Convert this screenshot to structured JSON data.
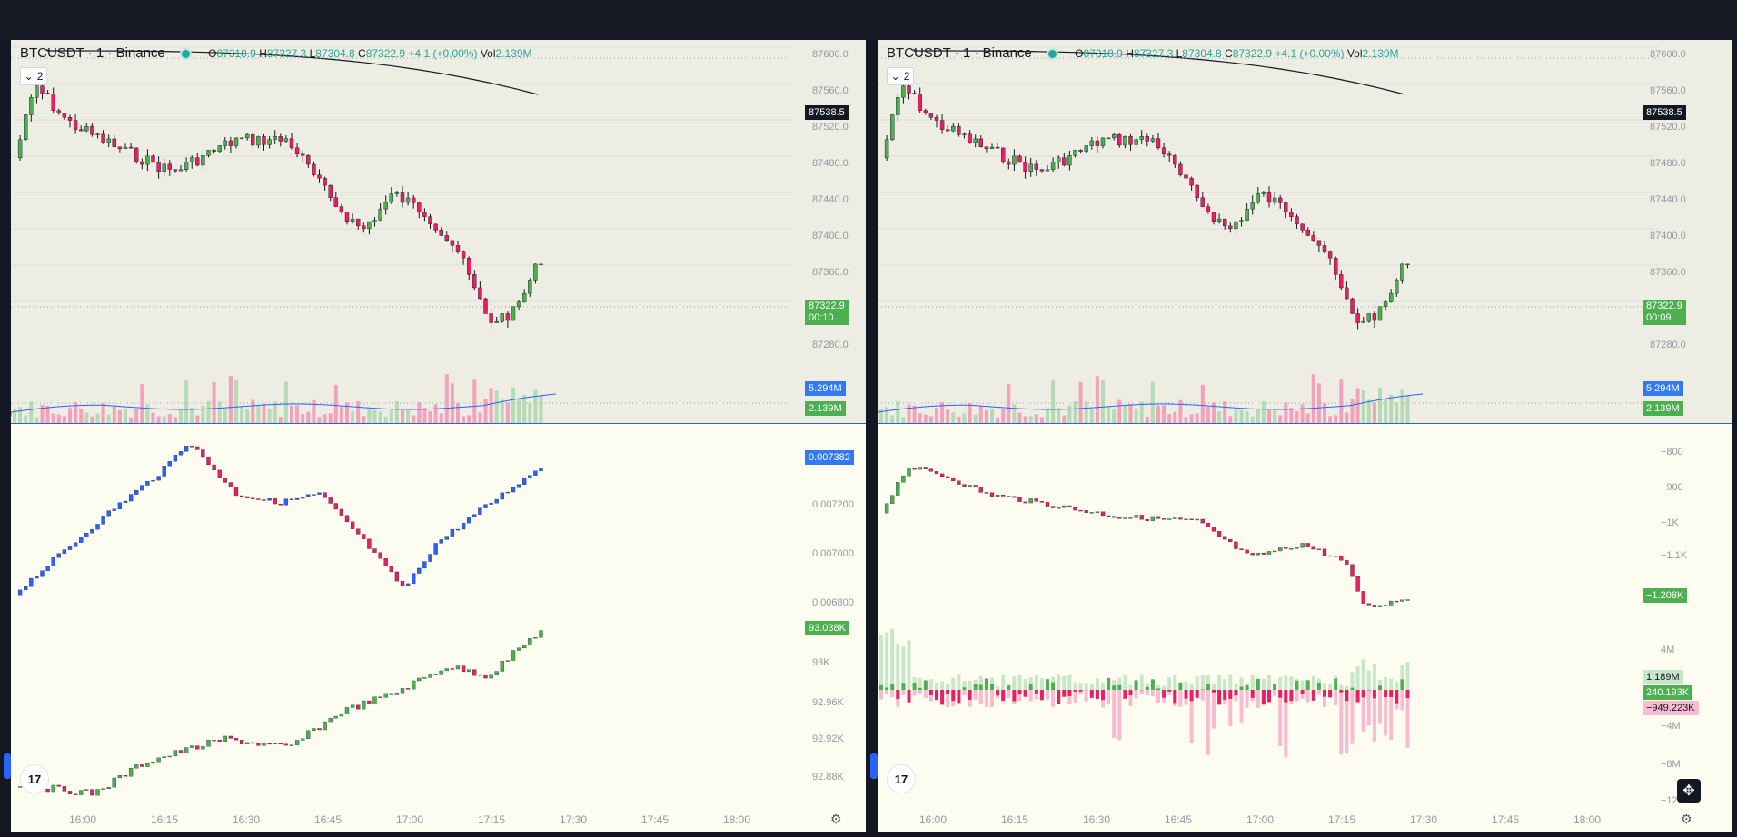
{
  "left_chart": {
    "symbol_title": "BTCUSDT · 1 · Binance",
    "ohlc": {
      "o_label": "O",
      "o": "87318.9",
      "h_label": "H",
      "h": "87327.3",
      "l_label": "L",
      "l": "87304.8",
      "c_label": "C",
      "c": "87322.9",
      "change": "+4.1 (+0.00%)",
      "vol_label": "Vol",
      "vol": "2.139M"
    },
    "collapse_count": "2",
    "price_axis": [
      "87600.0",
      "87560.0",
      "87520.0",
      "87480.0",
      "87440.0",
      "87400.0",
      "87360.0",
      "87280.0"
    ],
    "price_tag": "87538.5",
    "last_price": "87322.9",
    "countdown": "00:10",
    "vol_tags": [
      "5.294M",
      "2.139M"
    ],
    "pane2_axis": [
      "0.007200",
      "0.007000",
      "0.006800"
    ],
    "pane2_tag": "0.007382",
    "pane3_axis": [
      "93K",
      "92.96K",
      "92.92K",
      "92.88K"
    ],
    "pane3_tag": "93.038K",
    "time_axis": [
      "16:00",
      "16:15",
      "16:30",
      "16:45",
      "17:00",
      "17:15",
      "17:30",
      "17:45",
      "18:00"
    ]
  },
  "right_chart": {
    "symbol_title": "BTCUSDT · 1 · Binance",
    "ohlc": {
      "o_label": "O",
      "o": "87318.9",
      "h_label": "H",
      "h": "87327.3",
      "l_label": "L",
      "l": "87304.8",
      "c_label": "C",
      "c": "87322.9",
      "change": "+4.1 (+0.00%)",
      "vol_label": "Vol",
      "vol": "2.139M"
    },
    "collapse_count": "2",
    "price_axis": [
      "87600.0",
      "87560.0",
      "87520.0",
      "87480.0",
      "87440.0",
      "87400.0",
      "87360.0",
      "87280.0"
    ],
    "price_tag": "87538.5",
    "last_price": "87322.9",
    "countdown": "00:09",
    "vol_tags": [
      "5.294M",
      "2.139M"
    ],
    "pane2_axis": [
      "−800",
      "−900",
      "−1K",
      "−1.1K"
    ],
    "pane2_tag": "−1.208K",
    "pane3_axis": [
      "4M",
      "−4M",
      "−8M",
      "−12M"
    ],
    "pane3_tags": [
      "1.189M",
      "240.193K",
      "−949.223K"
    ],
    "time_axis": [
      "16:00",
      "16:15",
      "16:30",
      "16:45",
      "17:00",
      "17:15",
      "17:30",
      "17:45",
      "18:00"
    ]
  },
  "colors": {
    "up": "#4caf50",
    "down": "#e91e63",
    "blue_series": "#2962ff",
    "tag_blue": "#3179f5",
    "tag_green": "#4caf50",
    "tag_black": "#131722",
    "tag_light_green": "#c8e6c9",
    "tag_pink": "#f8bbd0"
  },
  "icons": {
    "tradingview_logo": "tradingview-logo-icon",
    "settings": "gear-icon",
    "move": "move-arrows-icon",
    "collapse": "chevron-down-icon"
  }
}
